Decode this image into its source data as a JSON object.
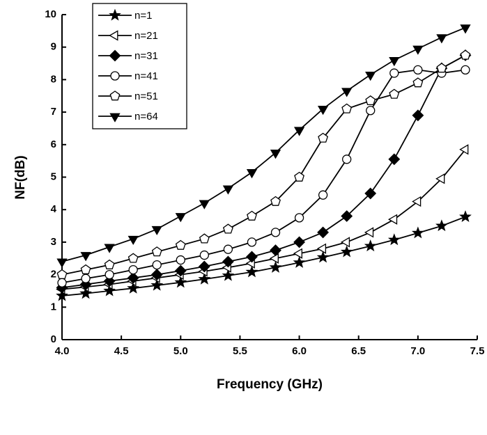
{
  "chart_data": {
    "type": "line",
    "x_label": "Frequency (GHz)",
    "y_label": "NF(dB)",
    "x": [
      4.0,
      4.2,
      4.4,
      4.6,
      4.8,
      5.0,
      5.2,
      5.4,
      5.6,
      5.8,
      6.0,
      6.2,
      6.4,
      6.6,
      6.8,
      7.0,
      7.2,
      7.4
    ],
    "series": [
      {
        "name": "n=1",
        "color": "#000000",
        "marker": "star",
        "marker_fill": "#000000",
        "values": [
          1.35,
          1.42,
          1.5,
          1.58,
          1.67,
          1.76,
          1.86,
          1.97,
          2.08,
          2.22,
          2.37,
          2.53,
          2.7,
          2.88,
          3.07,
          3.28,
          3.5,
          3.78
        ]
      },
      {
        "name": "n=21",
        "color": "#000000",
        "marker": "triangle-left",
        "marker_fill": "#ffffff",
        "values": [
          1.55,
          1.62,
          1.7,
          1.8,
          1.9,
          2.0,
          2.1,
          2.22,
          2.35,
          2.5,
          2.65,
          2.8,
          3.0,
          3.3,
          3.7,
          4.25,
          4.95,
          5.85
        ]
      },
      {
        "name": "n=31",
        "color": "#000000",
        "marker": "diamond",
        "marker_fill": "#000000",
        "values": [
          1.6,
          1.7,
          1.8,
          1.9,
          2.0,
          2.12,
          2.25,
          2.4,
          2.55,
          2.75,
          3.0,
          3.3,
          3.8,
          4.5,
          5.55,
          6.9,
          8.35,
          8.75
        ]
      },
      {
        "name": "n=41",
        "color": "#000000",
        "marker": "circle",
        "marker_fill": "#ffffff",
        "values": [
          1.75,
          1.88,
          2.0,
          2.15,
          2.3,
          2.45,
          2.6,
          2.78,
          3.0,
          3.3,
          3.75,
          4.45,
          5.55,
          7.05,
          8.2,
          8.3,
          8.2,
          8.3
        ]
      },
      {
        "name": "n=51",
        "color": "#000000",
        "marker": "pentagon",
        "marker_fill": "#ffffff",
        "values": [
          2.0,
          2.15,
          2.3,
          2.5,
          2.7,
          2.9,
          3.1,
          3.4,
          3.8,
          4.25,
          5.0,
          6.2,
          7.1,
          7.35,
          7.55,
          7.9,
          8.35,
          8.75
        ]
      },
      {
        "name": "n=64",
        "color": "#000000",
        "marker": "triangle-down",
        "marker_fill": "#000000",
        "values": [
          2.4,
          2.6,
          2.85,
          3.1,
          3.4,
          3.8,
          4.2,
          4.65,
          5.15,
          5.75,
          6.45,
          7.1,
          7.65,
          8.15,
          8.6,
          8.95,
          9.3,
          9.6
        ]
      }
    ],
    "xlim": [
      4.0,
      7.5
    ],
    "xticks": [
      {
        "value": 4,
        "label": "4.0"
      },
      4.5,
      {
        "value": 5,
        "label": "5.0"
      },
      5.5,
      {
        "value": 6,
        "label": "6.0"
      },
      6.5,
      {
        "value": 7,
        "label": "7.0"
      },
      7.5
    ],
    "ylim": [
      0,
      10
    ],
    "yticks": [
      0,
      1,
      2,
      3,
      4,
      5,
      6,
      7,
      8,
      9,
      10
    ],
    "legend": "upper-left"
  }
}
